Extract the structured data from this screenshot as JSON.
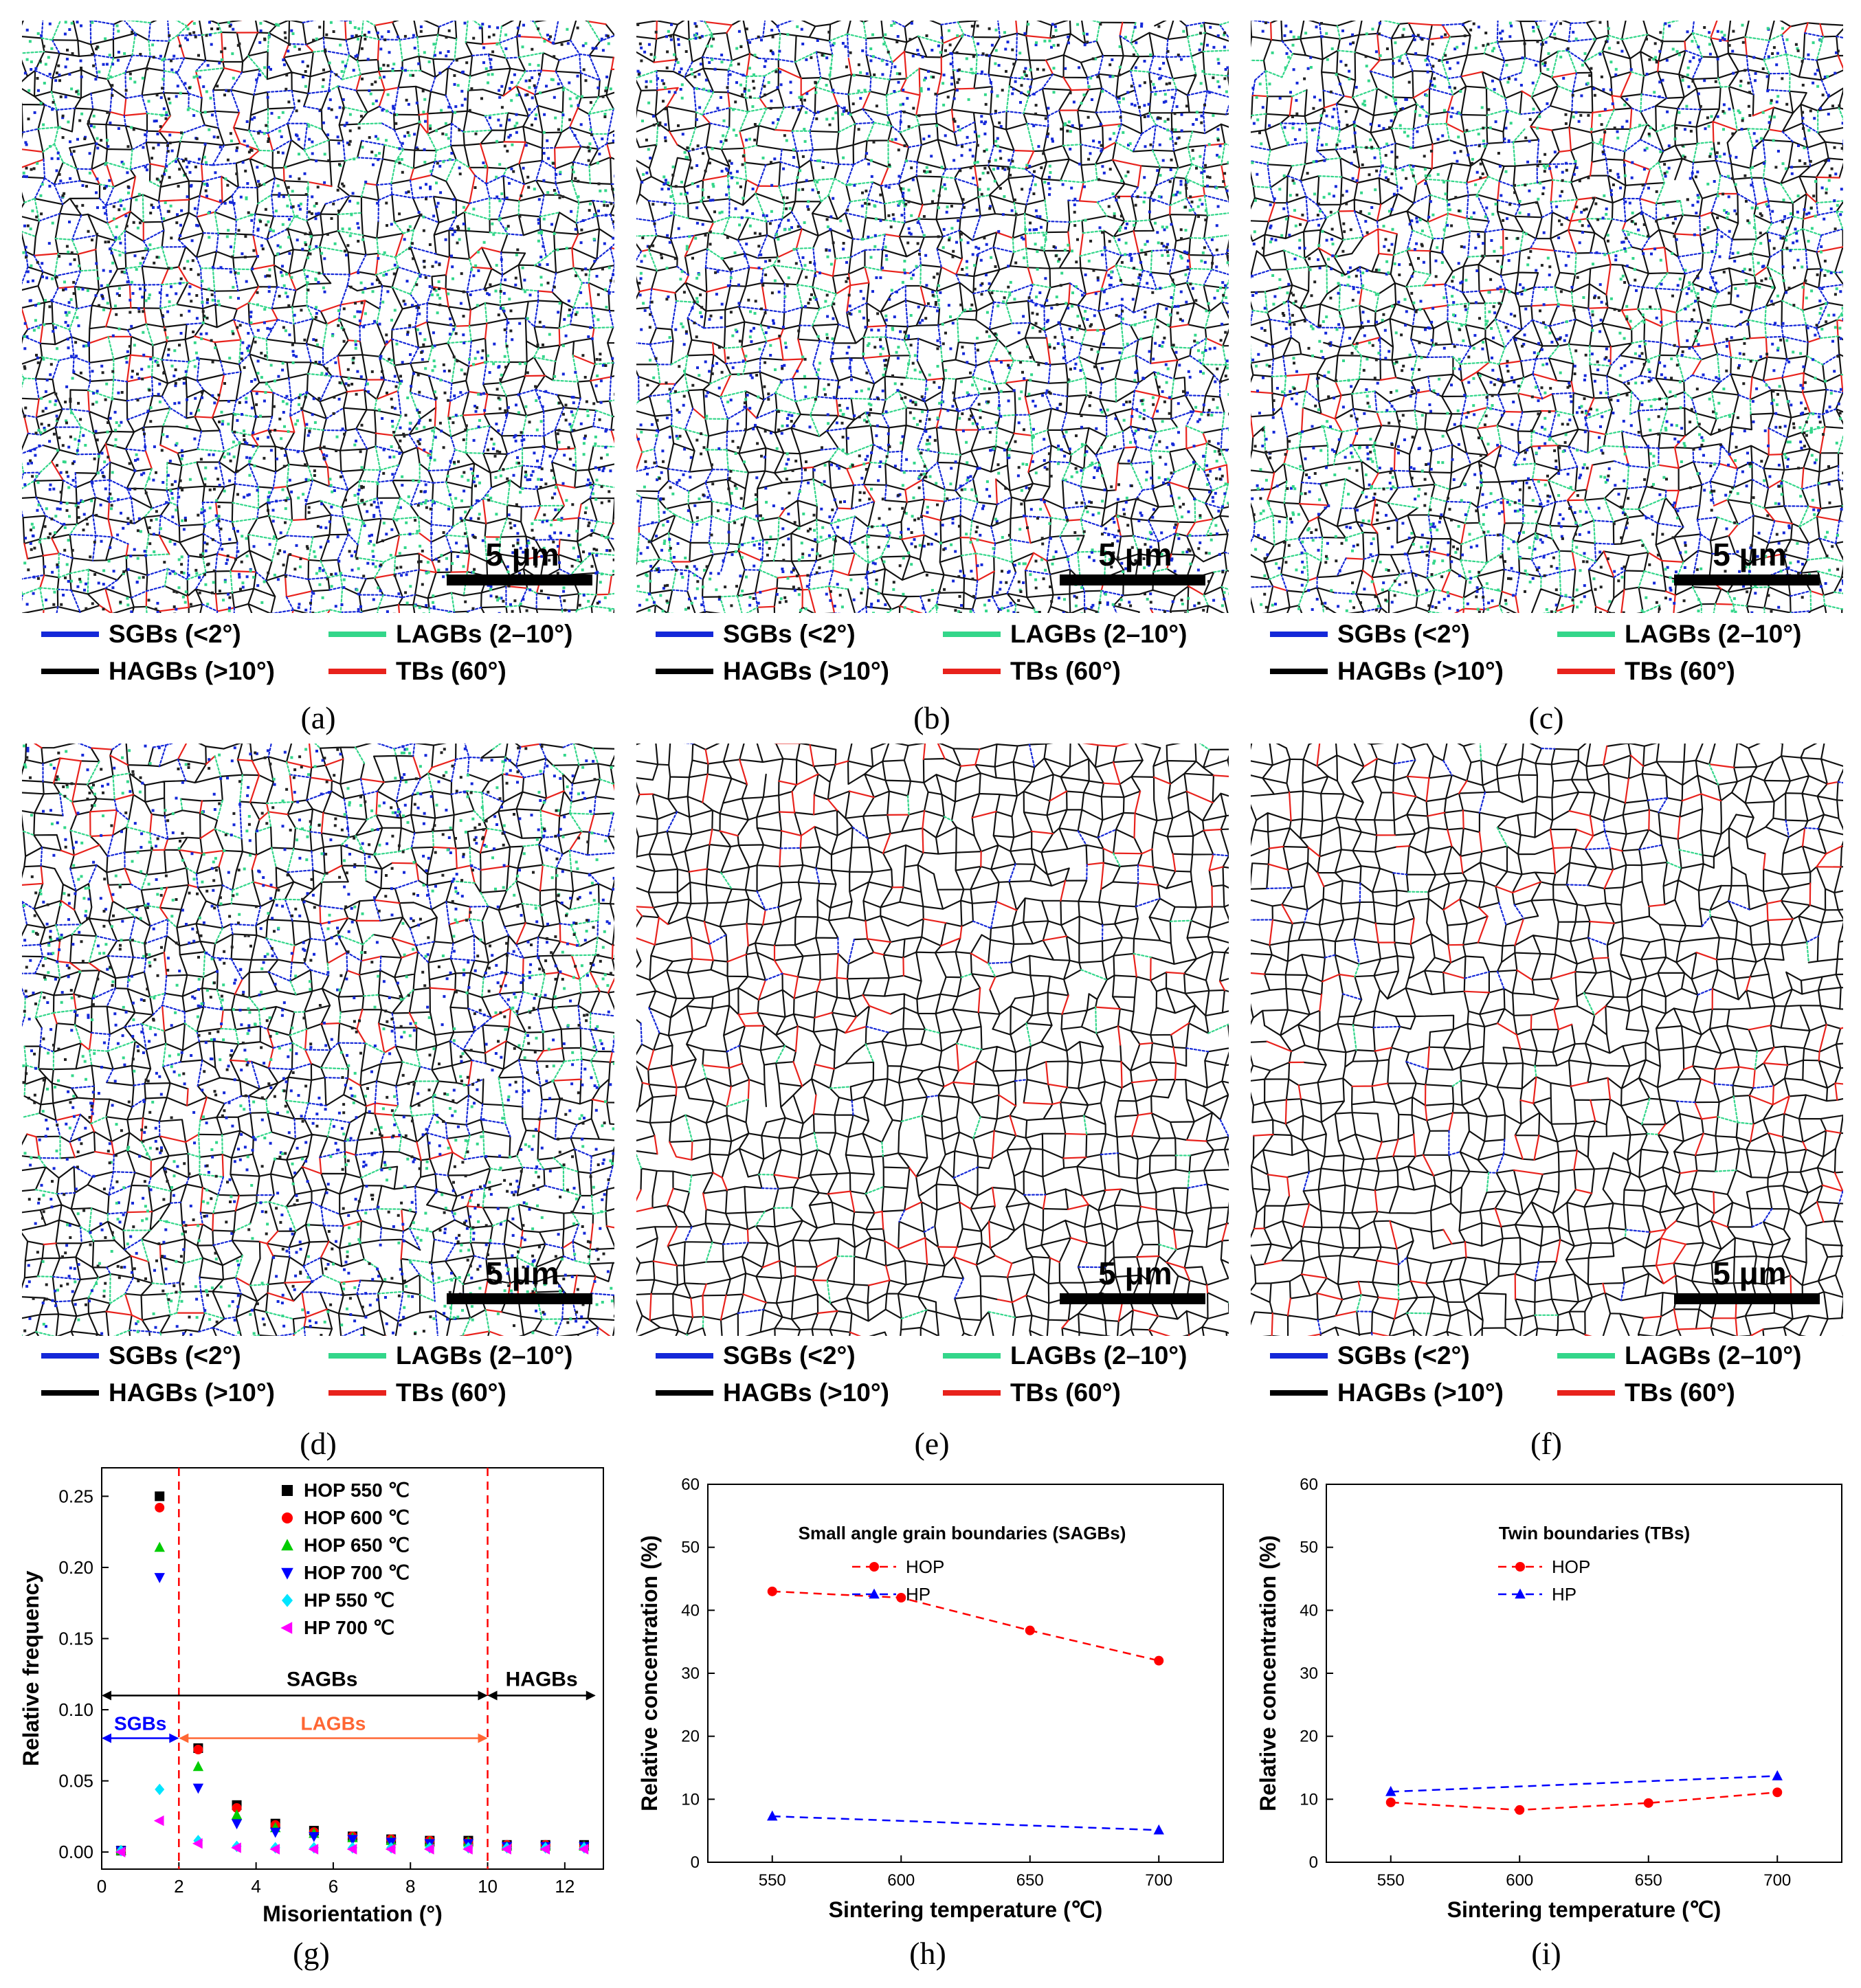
{
  "maps": [
    {
      "caption": "(a)",
      "scale_label": "5 μm",
      "density": 1.0,
      "noise": 1.0
    },
    {
      "caption": "(b)",
      "scale_label": "5 μm",
      "density": 1.0,
      "noise": 0.95
    },
    {
      "caption": "(c)",
      "scale_label": "5 μm",
      "density": 1.0,
      "noise": 0.85
    },
    {
      "caption": "(d)",
      "scale_label": "5 μm",
      "density": 1.0,
      "noise": 0.7
    },
    {
      "caption": "(e)",
      "scale_label": "5 μm",
      "density": 1.0,
      "noise": 0.1
    },
    {
      "caption": "(f)",
      "scale_label": "5 μm",
      "density": 1.0,
      "noise": 0.12
    }
  ],
  "legend": {
    "items": [
      {
        "label": "SGBs (<2°)",
        "color": "#1428d8"
      },
      {
        "label": "LAGBs (2–10°)",
        "color": "#33d68a"
      },
      {
        "label": "HAGBs (>10°)",
        "color": "#000000"
      },
      {
        "label": "TBs (60°)",
        "color": "#e8221c"
      }
    ]
  },
  "chart_data": [
    {
      "type": "scatter",
      "caption": "(g)",
      "xlabel": "Misorientation (°)",
      "ylabel": "Relative frequency",
      "xlim": [
        0,
        13
      ],
      "ylim": [
        -0.012,
        0.27
      ],
      "xticks": [
        0,
        2,
        4,
        6,
        8,
        10,
        12
      ],
      "yticks": [
        "0.00",
        "0.05",
        "0.10",
        "0.15",
        "0.20",
        "0.25"
      ],
      "x": [
        0.5,
        1.5,
        2.5,
        3.5,
        4.5,
        5.5,
        6.5,
        7.5,
        8.5,
        9.5,
        10.5,
        11.5,
        12.5
      ],
      "series": [
        {
          "name": "HOP 550 ℃",
          "color": "#000000",
          "marker": "square",
          "values": [
            0.001,
            0.25,
            0.073,
            0.033,
            0.02,
            0.015,
            0.011,
            0.009,
            0.008,
            0.008,
            0.005,
            0.005,
            0.005
          ]
        },
        {
          "name": "HOP 600 ℃",
          "color": "#ff0000",
          "marker": "circle",
          "values": [
            0.001,
            0.242,
            0.072,
            0.031,
            0.019,
            0.014,
            0.011,
            0.009,
            0.008,
            0.007,
            0.005,
            0.005,
            0.004
          ]
        },
        {
          "name": "HOP 650 ℃",
          "color": "#00cc00",
          "marker": "triangle-up",
          "values": [
            0.001,
            0.214,
            0.06,
            0.026,
            0.017,
            0.013,
            0.01,
            0.008,
            0.007,
            0.007,
            0.004,
            0.004,
            0.004
          ]
        },
        {
          "name": "HOP 700 ℃",
          "color": "#0000ff",
          "marker": "triangle-down",
          "values": [
            0.001,
            0.193,
            0.045,
            0.02,
            0.014,
            0.011,
            0.009,
            0.007,
            0.006,
            0.006,
            0.004,
            0.004,
            0.004
          ]
        },
        {
          "name": "HP  550 ℃",
          "color": "#00e5ff",
          "marker": "diamond",
          "values": [
            0.001,
            0.044,
            0.008,
            0.004,
            0.003,
            0.003,
            0.003,
            0.003,
            0.003,
            0.003,
            0.003,
            0.003,
            0.003
          ]
        },
        {
          "name": "HP  700 ℃",
          "color": "#ff00ff",
          "marker": "triangle-left",
          "values": [
            0.0,
            0.022,
            0.006,
            0.003,
            0.002,
            0.002,
            0.002,
            0.002,
            0.002,
            0.002,
            0.002,
            0.002,
            0.002
          ]
        }
      ],
      "vlines": [
        2,
        10
      ],
      "annotations": {
        "sagbs": {
          "label": "SAGBs",
          "y": 0.11,
          "x_from": 0,
          "x_to": 10
        },
        "hagbs": {
          "label": "HAGBs",
          "y": 0.11,
          "x_from": 10,
          "x_to": 12.8
        },
        "sgbs": {
          "label": "SGBs",
          "y": 0.08,
          "x_from": 0,
          "x_to": 2
        },
        "lagbs": {
          "label": "LAGBs",
          "y": 0.08,
          "x_from": 2,
          "x_to": 10
        }
      }
    },
    {
      "type": "line",
      "caption": "(h)",
      "title": "Small angle grain boundaries (SAGBs)",
      "xlabel": "Sintering temperature (℃)",
      "ylabel": "Relative concentration (%)",
      "xlim": [
        525,
        725
      ],
      "ylim": [
        0,
        60
      ],
      "xticks": [
        550,
        600,
        650,
        700
      ],
      "yticks": [
        0,
        10,
        20,
        30,
        40,
        50,
        60
      ],
      "series": [
        {
          "name": "HOP",
          "color": "#ff0000",
          "marker": "circle",
          "x": [
            550,
            600,
            650,
            700
          ],
          "values": [
            43.0,
            42.0,
            36.8,
            32.0
          ]
        },
        {
          "name": "HP",
          "color": "#0000ff",
          "marker": "triangle-up",
          "x": [
            550,
            700
          ],
          "values": [
            7.3,
            5.1
          ]
        }
      ]
    },
    {
      "type": "line",
      "caption": "(i)",
      "title": "Twin boundaries (TBs)",
      "xlabel": "Sintering temperature (℃)",
      "ylabel": "Relative concentration (%)",
      "xlim": [
        525,
        725
      ],
      "ylim": [
        0,
        60
      ],
      "xticks": [
        550,
        600,
        650,
        700
      ],
      "yticks": [
        0,
        10,
        20,
        30,
        40,
        50,
        60
      ],
      "series": [
        {
          "name": "HOP",
          "color": "#ff0000",
          "marker": "circle",
          "x": [
            550,
            600,
            650,
            700
          ],
          "values": [
            9.5,
            8.3,
            9.4,
            11.1
          ]
        },
        {
          "name": "HP",
          "color": "#0000ff",
          "marker": "triangle-up",
          "x": [
            550,
            700
          ],
          "values": [
            11.2,
            13.7
          ]
        }
      ]
    }
  ]
}
